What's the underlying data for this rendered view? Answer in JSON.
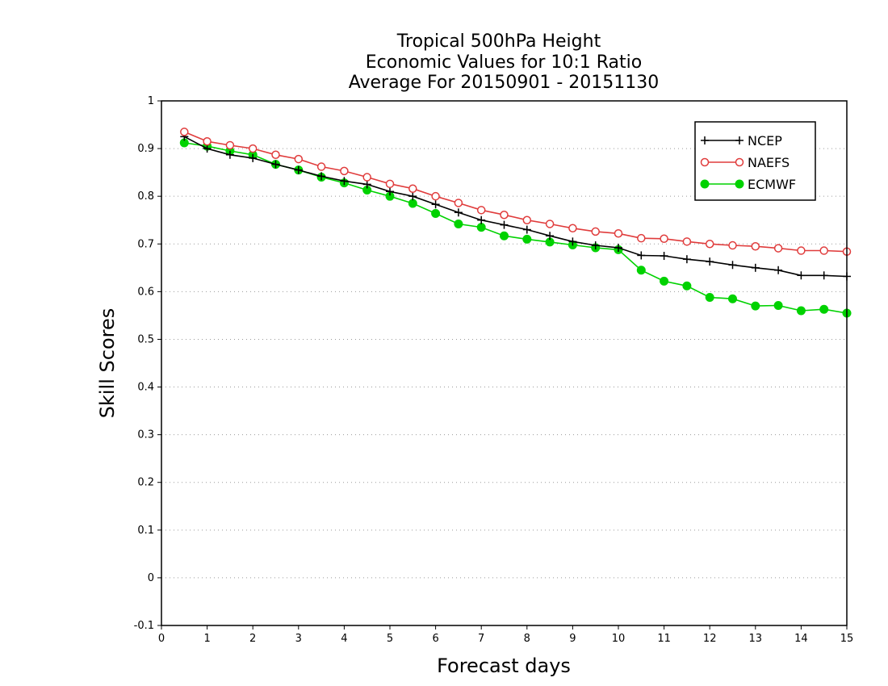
{
  "chart_data": {
    "type": "line",
    "title": [
      "Tropical 500hPa Height",
      "Economic Values for 10:1 Ratio",
      "Average For 20150901 - 20151130"
    ],
    "xlabel": "Forecast days",
    "ylabel": "Skill Scores",
    "xlim": [
      0,
      15
    ],
    "ylim": [
      -0.1,
      1
    ],
    "xticks": [
      "0",
      "1",
      "2",
      "3",
      "4",
      "5",
      "6",
      "7",
      "8",
      "9",
      "10",
      "11",
      "12",
      "13",
      "14",
      "15"
    ],
    "yticks": [
      "-0.1",
      "0",
      "0.1",
      "0.2",
      "0.3",
      "0.4",
      "0.5",
      "0.6",
      "0.7",
      "0.8",
      "0.9",
      "1"
    ],
    "grid": true,
    "legend_position": "top-right",
    "x": [
      0.5,
      1,
      1.5,
      2,
      2.5,
      3,
      3.5,
      4,
      4.5,
      5,
      5.5,
      6,
      6.5,
      7,
      7.5,
      8,
      8.5,
      9,
      9.5,
      10,
      10.5,
      11,
      11.5,
      12,
      12.5,
      13,
      13.5,
      14,
      14.5,
      15
    ],
    "series": [
      {
        "name": "NCEP",
        "color": "#000000",
        "marker": "plus",
        "values": [
          0.925,
          0.9,
          0.887,
          0.88,
          0.867,
          0.855,
          0.842,
          0.832,
          0.825,
          0.81,
          0.8,
          0.783,
          0.766,
          0.75,
          0.74,
          0.73,
          0.717,
          0.705,
          0.697,
          0.692,
          0.676,
          0.675,
          0.668,
          0.663,
          0.656,
          0.65,
          0.645,
          0.634,
          0.634,
          0.632
        ]
      },
      {
        "name": "NAEFS",
        "color": "#e03c3c",
        "marker": "open-circle",
        "values": [
          0.935,
          0.915,
          0.907,
          0.9,
          0.887,
          0.878,
          0.862,
          0.853,
          0.84,
          0.826,
          0.816,
          0.8,
          0.786,
          0.771,
          0.761,
          0.75,
          0.742,
          0.733,
          0.726,
          0.722,
          0.712,
          0.711,
          0.705,
          0.7,
          0.697,
          0.695,
          0.691,
          0.686,
          0.686,
          0.684
        ]
      },
      {
        "name": "ECMWF",
        "color": "#00d200",
        "marker": "filled-circle",
        "values": [
          0.912,
          0.905,
          0.895,
          0.887,
          0.867,
          0.855,
          0.84,
          0.828,
          0.813,
          0.8,
          0.785,
          0.764,
          0.742,
          0.735,
          0.717,
          0.71,
          0.704,
          0.698,
          0.692,
          0.688,
          0.645,
          0.622,
          0.612,
          0.588,
          0.585,
          0.57,
          0.571,
          0.56,
          0.563,
          0.555
        ]
      }
    ]
  }
}
